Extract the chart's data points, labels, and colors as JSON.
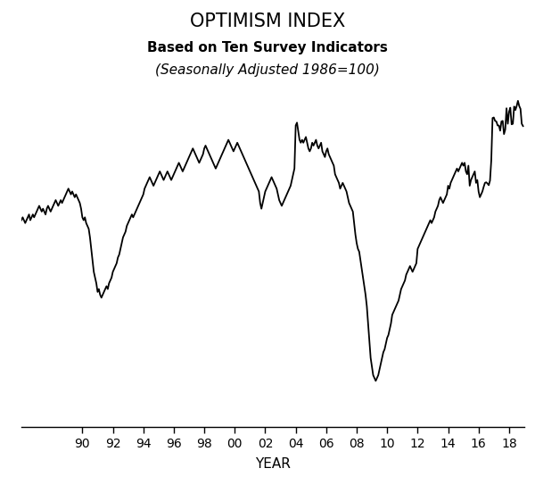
{
  "title": "OPTIMISM INDEX",
  "subtitle1": "Based on Ten Survey Indicators",
  "subtitle2": "(Seasonally Adjusted 1986=100)",
  "xlabel": "YEAR",
  "line_color": "#000000",
  "line_width": 1.3,
  "background_color": "#ffffff",
  "x_tick_labels": [
    "90",
    "92",
    "94",
    "96",
    "98",
    "00",
    "02",
    "04",
    "06",
    "08",
    "10",
    "12",
    "14",
    "16",
    "18"
  ],
  "x_tick_positions": [
    1990,
    1992,
    1994,
    1996,
    1998,
    2000,
    2002,
    2004,
    2006,
    2008,
    2010,
    2012,
    2014,
    2016,
    2018
  ],
  "ylim": [
    52,
    112
  ],
  "xlim": [
    1986.0,
    2019.0
  ],
  "nfib_data": [
    [
      1986.0,
      88.0
    ],
    [
      1986.083,
      88.5
    ],
    [
      1986.167,
      88.0
    ],
    [
      1986.25,
      87.5
    ],
    [
      1986.333,
      88.0
    ],
    [
      1986.417,
      88.5
    ],
    [
      1986.5,
      89.0
    ],
    [
      1986.583,
      88.0
    ],
    [
      1986.667,
      88.5
    ],
    [
      1986.75,
      89.0
    ],
    [
      1986.833,
      88.5
    ],
    [
      1986.917,
      89.0
    ],
    [
      1987.0,
      89.5
    ],
    [
      1987.083,
      90.0
    ],
    [
      1987.167,
      90.5
    ],
    [
      1987.25,
      90.0
    ],
    [
      1987.333,
      89.5
    ],
    [
      1987.417,
      90.0
    ],
    [
      1987.5,
      89.5
    ],
    [
      1987.583,
      89.0
    ],
    [
      1987.667,
      90.0
    ],
    [
      1987.75,
      90.5
    ],
    [
      1987.833,
      90.0
    ],
    [
      1987.917,
      89.5
    ],
    [
      1988.0,
      90.0
    ],
    [
      1988.083,
      90.5
    ],
    [
      1988.167,
      91.0
    ],
    [
      1988.25,
      91.5
    ],
    [
      1988.333,
      91.0
    ],
    [
      1988.417,
      90.5
    ],
    [
      1988.5,
      91.0
    ],
    [
      1988.583,
      91.5
    ],
    [
      1988.667,
      91.0
    ],
    [
      1988.75,
      91.5
    ],
    [
      1988.833,
      92.0
    ],
    [
      1988.917,
      92.5
    ],
    [
      1989.0,
      93.0
    ],
    [
      1989.083,
      93.5
    ],
    [
      1989.167,
      93.0
    ],
    [
      1989.25,
      92.5
    ],
    [
      1989.333,
      93.0
    ],
    [
      1989.417,
      92.5
    ],
    [
      1989.5,
      92.0
    ],
    [
      1989.583,
      92.5
    ],
    [
      1989.667,
      92.0
    ],
    [
      1989.75,
      91.5
    ],
    [
      1989.833,
      91.0
    ],
    [
      1989.917,
      90.0
    ],
    [
      1990.0,
      88.5
    ],
    [
      1990.083,
      88.0
    ],
    [
      1990.167,
      88.5
    ],
    [
      1990.25,
      87.5
    ],
    [
      1990.333,
      87.0
    ],
    [
      1990.417,
      86.5
    ],
    [
      1990.5,
      85.0
    ],
    [
      1990.583,
      83.0
    ],
    [
      1990.667,
      81.0
    ],
    [
      1990.75,
      79.0
    ],
    [
      1990.833,
      78.0
    ],
    [
      1990.917,
      77.0
    ],
    [
      1991.0,
      75.5
    ],
    [
      1991.083,
      76.0
    ],
    [
      1991.167,
      75.0
    ],
    [
      1991.25,
      74.5
    ],
    [
      1991.333,
      75.0
    ],
    [
      1991.417,
      75.5
    ],
    [
      1991.5,
      76.0
    ],
    [
      1991.583,
      76.5
    ],
    [
      1991.667,
      76.0
    ],
    [
      1991.75,
      77.0
    ],
    [
      1991.833,
      77.5
    ],
    [
      1991.917,
      78.0
    ],
    [
      1992.0,
      79.0
    ],
    [
      1992.083,
      79.5
    ],
    [
      1992.167,
      80.0
    ],
    [
      1992.25,
      80.5
    ],
    [
      1992.333,
      81.5
    ],
    [
      1992.417,
      82.0
    ],
    [
      1992.5,
      83.0
    ],
    [
      1992.583,
      84.0
    ],
    [
      1992.667,
      85.0
    ],
    [
      1992.75,
      85.5
    ],
    [
      1992.833,
      86.0
    ],
    [
      1992.917,
      87.0
    ],
    [
      1993.0,
      87.5
    ],
    [
      1993.083,
      88.0
    ],
    [
      1993.167,
      88.5
    ],
    [
      1993.25,
      89.0
    ],
    [
      1993.333,
      88.5
    ],
    [
      1993.417,
      89.0
    ],
    [
      1993.5,
      89.5
    ],
    [
      1993.583,
      90.0
    ],
    [
      1993.667,
      90.5
    ],
    [
      1993.75,
      91.0
    ],
    [
      1993.833,
      91.5
    ],
    [
      1993.917,
      92.0
    ],
    [
      1994.0,
      92.5
    ],
    [
      1994.083,
      93.5
    ],
    [
      1994.167,
      94.0
    ],
    [
      1994.25,
      94.5
    ],
    [
      1994.333,
      95.0
    ],
    [
      1994.417,
      95.5
    ],
    [
      1994.5,
      95.0
    ],
    [
      1994.583,
      94.5
    ],
    [
      1994.667,
      94.0
    ],
    [
      1994.75,
      94.5
    ],
    [
      1994.833,
      95.0
    ],
    [
      1994.917,
      95.5
    ],
    [
      1995.0,
      96.0
    ],
    [
      1995.083,
      96.5
    ],
    [
      1995.167,
      96.0
    ],
    [
      1995.25,
      95.5
    ],
    [
      1995.333,
      95.0
    ],
    [
      1995.417,
      95.5
    ],
    [
      1995.5,
      96.0
    ],
    [
      1995.583,
      96.5
    ],
    [
      1995.667,
      96.0
    ],
    [
      1995.75,
      95.5
    ],
    [
      1995.833,
      95.0
    ],
    [
      1995.917,
      95.5
    ],
    [
      1996.0,
      96.0
    ],
    [
      1996.083,
      96.5
    ],
    [
      1996.167,
      97.0
    ],
    [
      1996.25,
      97.5
    ],
    [
      1996.333,
      98.0
    ],
    [
      1996.417,
      97.5
    ],
    [
      1996.5,
      97.0
    ],
    [
      1996.583,
      96.5
    ],
    [
      1996.667,
      97.0
    ],
    [
      1996.75,
      97.5
    ],
    [
      1996.833,
      98.0
    ],
    [
      1996.917,
      98.5
    ],
    [
      1997.0,
      99.0
    ],
    [
      1997.083,
      99.5
    ],
    [
      1997.167,
      100.0
    ],
    [
      1997.25,
      100.5
    ],
    [
      1997.333,
      100.0
    ],
    [
      1997.417,
      99.5
    ],
    [
      1997.5,
      99.0
    ],
    [
      1997.583,
      98.5
    ],
    [
      1997.667,
      98.0
    ],
    [
      1997.75,
      98.5
    ],
    [
      1997.833,
      99.0
    ],
    [
      1997.917,
      99.5
    ],
    [
      1998.0,
      100.5
    ],
    [
      1998.083,
      101.0
    ],
    [
      1998.167,
      100.5
    ],
    [
      1998.25,
      100.0
    ],
    [
      1998.333,
      99.5
    ],
    [
      1998.417,
      99.0
    ],
    [
      1998.5,
      98.5
    ],
    [
      1998.583,
      98.0
    ],
    [
      1998.667,
      97.5
    ],
    [
      1998.75,
      97.0
    ],
    [
      1998.833,
      97.5
    ],
    [
      1998.917,
      98.0
    ],
    [
      1999.0,
      98.5
    ],
    [
      1999.083,
      99.0
    ],
    [
      1999.167,
      99.5
    ],
    [
      1999.25,
      100.0
    ],
    [
      1999.333,
      100.5
    ],
    [
      1999.417,
      101.0
    ],
    [
      1999.5,
      101.5
    ],
    [
      1999.583,
      102.0
    ],
    [
      1999.667,
      101.5
    ],
    [
      1999.75,
      101.0
    ],
    [
      1999.833,
      100.5
    ],
    [
      1999.917,
      100.0
    ],
    [
      2000.0,
      100.5
    ],
    [
      2000.083,
      101.0
    ],
    [
      2000.167,
      101.5
    ],
    [
      2000.25,
      101.0
    ],
    [
      2000.333,
      100.5
    ],
    [
      2000.417,
      100.0
    ],
    [
      2000.5,
      99.5
    ],
    [
      2000.583,
      99.0
    ],
    [
      2000.667,
      98.5
    ],
    [
      2000.75,
      98.0
    ],
    [
      2000.833,
      97.5
    ],
    [
      2000.917,
      97.0
    ],
    [
      2001.0,
      96.5
    ],
    [
      2001.083,
      96.0
    ],
    [
      2001.167,
      95.5
    ],
    [
      2001.25,
      95.0
    ],
    [
      2001.333,
      94.5
    ],
    [
      2001.417,
      94.0
    ],
    [
      2001.5,
      93.5
    ],
    [
      2001.583,
      93.0
    ],
    [
      2001.667,
      91.0
    ],
    [
      2001.75,
      90.0
    ],
    [
      2001.833,
      91.0
    ],
    [
      2001.917,
      92.0
    ],
    [
      2002.0,
      93.0
    ],
    [
      2002.083,
      93.5
    ],
    [
      2002.167,
      94.0
    ],
    [
      2002.25,
      94.5
    ],
    [
      2002.333,
      95.0
    ],
    [
      2002.417,
      95.5
    ],
    [
      2002.5,
      95.0
    ],
    [
      2002.583,
      94.5
    ],
    [
      2002.667,
      94.0
    ],
    [
      2002.75,
      93.5
    ],
    [
      2002.833,
      92.5
    ],
    [
      2002.917,
      91.5
    ],
    [
      2003.0,
      91.0
    ],
    [
      2003.083,
      90.5
    ],
    [
      2003.167,
      91.0
    ],
    [
      2003.25,
      91.5
    ],
    [
      2003.333,
      92.0
    ],
    [
      2003.417,
      92.5
    ],
    [
      2003.5,
      93.0
    ],
    [
      2003.583,
      93.5
    ],
    [
      2003.667,
      94.0
    ],
    [
      2003.75,
      95.0
    ],
    [
      2003.833,
      96.0
    ],
    [
      2003.917,
      97.0
    ],
    [
      2004.0,
      104.5
    ],
    [
      2004.083,
      105.0
    ],
    [
      2004.167,
      103.5
    ],
    [
      2004.25,
      102.0
    ],
    [
      2004.333,
      101.5
    ],
    [
      2004.417,
      102.0
    ],
    [
      2004.5,
      101.5
    ],
    [
      2004.583,
      102.0
    ],
    [
      2004.667,
      102.5
    ],
    [
      2004.75,
      101.5
    ],
    [
      2004.833,
      100.5
    ],
    [
      2004.917,
      100.0
    ],
    [
      2005.0,
      100.5
    ],
    [
      2005.083,
      101.5
    ],
    [
      2005.167,
      101.0
    ],
    [
      2005.25,
      101.5
    ],
    [
      2005.333,
      102.0
    ],
    [
      2005.417,
      101.0
    ],
    [
      2005.5,
      100.5
    ],
    [
      2005.583,
      101.0
    ],
    [
      2005.667,
      101.5
    ],
    [
      2005.75,
      100.0
    ],
    [
      2005.833,
      99.5
    ],
    [
      2005.917,
      99.0
    ],
    [
      2006.0,
      100.0
    ],
    [
      2006.083,
      100.5
    ],
    [
      2006.167,
      99.5
    ],
    [
      2006.25,
      99.0
    ],
    [
      2006.333,
      98.5
    ],
    [
      2006.417,
      98.0
    ],
    [
      2006.5,
      97.5
    ],
    [
      2006.583,
      96.0
    ],
    [
      2006.667,
      95.5
    ],
    [
      2006.75,
      95.0
    ],
    [
      2006.833,
      94.5
    ],
    [
      2006.917,
      93.5
    ],
    [
      2007.0,
      94.0
    ],
    [
      2007.083,
      94.5
    ],
    [
      2007.167,
      94.0
    ],
    [
      2007.25,
      93.5
    ],
    [
      2007.333,
      93.0
    ],
    [
      2007.417,
      92.0
    ],
    [
      2007.5,
      91.0
    ],
    [
      2007.583,
      90.5
    ],
    [
      2007.667,
      90.0
    ],
    [
      2007.75,
      89.5
    ],
    [
      2007.833,
      87.5
    ],
    [
      2007.917,
      85.5
    ],
    [
      2008.0,
      84.0
    ],
    [
      2008.083,
      83.0
    ],
    [
      2008.167,
      82.5
    ],
    [
      2008.25,
      81.0
    ],
    [
      2008.333,
      79.5
    ],
    [
      2008.417,
      78.0
    ],
    [
      2008.5,
      76.5
    ],
    [
      2008.583,
      75.0
    ],
    [
      2008.667,
      73.0
    ],
    [
      2008.75,
      70.0
    ],
    [
      2008.833,
      67.0
    ],
    [
      2008.917,
      64.0
    ],
    [
      2009.0,
      62.5
    ],
    [
      2009.083,
      61.0
    ],
    [
      2009.167,
      60.5
    ],
    [
      2009.25,
      60.0
    ],
    [
      2009.333,
      60.5
    ],
    [
      2009.417,
      61.0
    ],
    [
      2009.5,
      62.0
    ],
    [
      2009.583,
      63.0
    ],
    [
      2009.667,
      64.0
    ],
    [
      2009.75,
      65.0
    ],
    [
      2009.833,
      65.5
    ],
    [
      2009.917,
      66.5
    ],
    [
      2010.0,
      67.5
    ],
    [
      2010.083,
      68.0
    ],
    [
      2010.167,
      69.0
    ],
    [
      2010.25,
      70.0
    ],
    [
      2010.333,
      71.5
    ],
    [
      2010.417,
      72.0
    ],
    [
      2010.5,
      72.5
    ],
    [
      2010.583,
      73.0
    ],
    [
      2010.667,
      73.5
    ],
    [
      2010.75,
      74.0
    ],
    [
      2010.833,
      75.0
    ],
    [
      2010.917,
      76.0
    ],
    [
      2011.0,
      76.5
    ],
    [
      2011.083,
      77.0
    ],
    [
      2011.167,
      77.5
    ],
    [
      2011.25,
      78.5
    ],
    [
      2011.333,
      79.0
    ],
    [
      2011.417,
      79.5
    ],
    [
      2011.5,
      80.0
    ],
    [
      2011.583,
      79.5
    ],
    [
      2011.667,
      79.0
    ],
    [
      2011.75,
      79.5
    ],
    [
      2011.833,
      80.0
    ],
    [
      2011.917,
      80.5
    ],
    [
      2012.0,
      83.0
    ],
    [
      2012.083,
      83.5
    ],
    [
      2012.167,
      84.0
    ],
    [
      2012.25,
      84.5
    ],
    [
      2012.333,
      85.0
    ],
    [
      2012.417,
      85.5
    ],
    [
      2012.5,
      86.0
    ],
    [
      2012.583,
      86.5
    ],
    [
      2012.667,
      87.0
    ],
    [
      2012.75,
      87.5
    ],
    [
      2012.833,
      88.0
    ],
    [
      2012.917,
      87.5
    ],
    [
      2013.0,
      88.0
    ],
    [
      2013.083,
      88.5
    ],
    [
      2013.167,
      89.5
    ],
    [
      2013.25,
      90.0
    ],
    [
      2013.333,
      90.5
    ],
    [
      2013.417,
      91.5
    ],
    [
      2013.5,
      92.0
    ],
    [
      2013.583,
      91.5
    ],
    [
      2013.667,
      91.0
    ],
    [
      2013.75,
      91.5
    ],
    [
      2013.833,
      92.0
    ],
    [
      2013.917,
      92.5
    ],
    [
      2014.0,
      94.0
    ],
    [
      2014.083,
      93.5
    ],
    [
      2014.167,
      94.5
    ],
    [
      2014.25,
      95.0
    ],
    [
      2014.333,
      95.5
    ],
    [
      2014.417,
      96.0
    ],
    [
      2014.5,
      96.5
    ],
    [
      2014.583,
      97.0
    ],
    [
      2014.667,
      96.5
    ],
    [
      2014.75,
      97.0
    ],
    [
      2014.833,
      97.5
    ],
    [
      2014.917,
      98.0
    ],
    [
      2015.0,
      97.5
    ],
    [
      2015.083,
      98.0
    ],
    [
      2015.167,
      96.5
    ],
    [
      2015.25,
      96.0
    ],
    [
      2015.333,
      97.5
    ],
    [
      2015.417,
      94.0
    ],
    [
      2015.5,
      95.0
    ],
    [
      2015.583,
      95.5
    ],
    [
      2015.667,
      96.0
    ],
    [
      2015.75,
      96.5
    ],
    [
      2015.833,
      94.5
    ],
    [
      2015.917,
      95.0
    ],
    [
      2016.0,
      93.0
    ],
    [
      2016.083,
      92.0
    ],
    [
      2016.167,
      92.5
    ],
    [
      2016.25,
      93.0
    ],
    [
      2016.333,
      93.8
    ],
    [
      2016.417,
      94.5
    ],
    [
      2016.5,
      94.6
    ],
    [
      2016.583,
      94.4
    ],
    [
      2016.667,
      94.1
    ],
    [
      2016.75,
      94.9
    ],
    [
      2016.833,
      98.4
    ],
    [
      2016.917,
      105.8
    ],
    [
      2017.0,
      105.9
    ],
    [
      2017.083,
      105.3
    ],
    [
      2017.167,
      105.2
    ],
    [
      2017.25,
      104.5
    ],
    [
      2017.333,
      104.5
    ],
    [
      2017.417,
      103.6
    ],
    [
      2017.5,
      105.2
    ],
    [
      2017.583,
      105.3
    ],
    [
      2017.667,
      103.0
    ],
    [
      2017.75,
      103.8
    ],
    [
      2017.833,
      107.5
    ],
    [
      2017.917,
      104.8
    ],
    [
      2018.0,
      106.9
    ],
    [
      2018.083,
      107.6
    ],
    [
      2018.167,
      104.7
    ],
    [
      2018.25,
      104.8
    ],
    [
      2018.333,
      107.8
    ],
    [
      2018.417,
      107.2
    ],
    [
      2018.5,
      107.9
    ],
    [
      2018.583,
      108.8
    ],
    [
      2018.667,
      107.9
    ],
    [
      2018.75,
      107.4
    ],
    [
      2018.833,
      104.8
    ],
    [
      2018.917,
      104.4
    ]
  ]
}
